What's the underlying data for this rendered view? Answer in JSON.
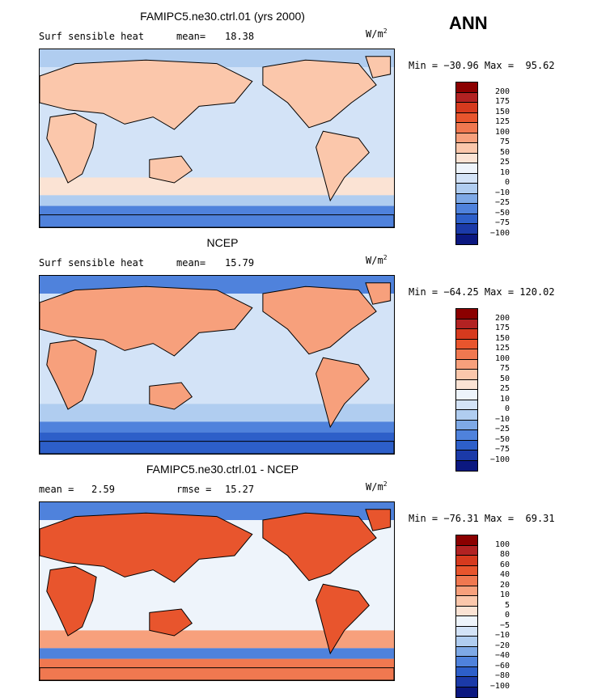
{
  "season": "ANN",
  "panels": [
    {
      "title": "FAMIPC5.ne30.ctrl.01 (yrs 2000)",
      "left_label": "Surf sensible heat",
      "stat_label": "mean=",
      "stat_value": "18.38",
      "units": "W/m",
      "units_sup": "2",
      "minmax_text": "Min = −30.96 Max =  95.62",
      "colorbar_labels": [
        "200",
        "175",
        "150",
        "125",
        "100",
        "75",
        "50",
        "25",
        "10",
        "0",
        "−10",
        "−25",
        "−50",
        "−75",
        "−100"
      ],
      "field": "model"
    },
    {
      "title": "NCEP",
      "left_label": "Surf sensible heat",
      "stat_label": "mean=",
      "stat_value": "15.79",
      "units": "W/m",
      "units_sup": "2",
      "minmax_text": "Min = −64.25 Max = 120.02",
      "colorbar_labels": [
        "200",
        "175",
        "150",
        "125",
        "100",
        "75",
        "50",
        "25",
        "10",
        "0",
        "−10",
        "−25",
        "−50",
        "−75",
        "−100"
      ],
      "field": "obs"
    },
    {
      "title": "FAMIPC5.ne30.ctrl.01 - NCEP",
      "left_label": "mean =   2.59",
      "stat_label": "rmse =",
      "stat_value": "15.27",
      "units": "W/m",
      "units_sup": "2",
      "minmax_text": "Min = −76.31 Max =  69.31",
      "colorbar_labels": [
        "100",
        "80",
        "60",
        "40",
        "20",
        "10",
        "5",
        "0",
        "−5",
        "−10",
        "−20",
        "−40",
        "−60",
        "−80",
        "−100"
      ],
      "field": "diff"
    }
  ],
  "colorbar_colors": [
    "#8b0000",
    "#b22222",
    "#d63a1e",
    "#e8552d",
    "#f07850",
    "#f7a07c",
    "#fbc7ab",
    "#fbe3d4",
    "#eef4fb",
    "#d3e3f7",
    "#b0cdf0",
    "#7ea9e6",
    "#4f82dc",
    "#2d5fc9",
    "#1b3aa8",
    "#0b1880"
  ]
}
